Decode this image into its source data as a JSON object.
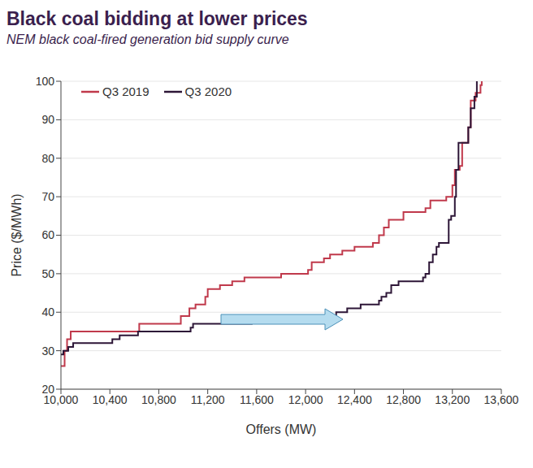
{
  "chart_data": {
    "type": "line",
    "title": "Black coal bidding at lower prices",
    "subtitle": "NEM black coal-fired generation bid supply curve",
    "x_label": "Offers (MW)",
    "y_label": "Price ($/MWh)",
    "line_style": "step",
    "grid": true,
    "legend": "upper left",
    "xlim": [
      10000,
      13600
    ],
    "xticks": [
      {
        "value": 10000,
        "label": "10,000"
      },
      {
        "value": 10400,
        "label": "10,400"
      },
      {
        "value": 10800,
        "label": "10,800"
      },
      {
        "value": 11200,
        "label": "11,200"
      },
      {
        "value": 11600,
        "label": "11,600"
      },
      {
        "value": 12000,
        "label": "12,000"
      },
      {
        "value": 12400,
        "label": "12,400"
      },
      {
        "value": 12800,
        "label": "12,800"
      },
      {
        "value": 13200,
        "label": "13,200"
      },
      {
        "value": 13600,
        "label": "13,600"
      }
    ],
    "ylim": [
      20,
      100
    ],
    "yticks": [
      20,
      30,
      40,
      50,
      60,
      70,
      80,
      90,
      100
    ],
    "series": [
      {
        "name": "Q3 2019",
        "color": "#c0394b",
        "x": [
          10000,
          10030,
          10050,
          10080,
          10640,
          10980,
          11050,
          11100,
          11180,
          11200,
          11300,
          11400,
          11500,
          11800,
          12020,
          12050,
          12150,
          12200,
          12300,
          12400,
          12550,
          12600,
          12640,
          12680,
          12800,
          12980,
          13020,
          13150,
          13200,
          13220,
          13260,
          13280,
          13330,
          13350,
          13390,
          13430,
          13440
        ],
        "values": [
          26,
          30,
          33,
          35,
          37,
          39,
          41,
          42,
          44,
          46,
          47,
          48,
          49,
          50,
          51,
          53,
          54,
          55,
          56,
          57,
          58,
          60,
          62,
          64,
          66,
          67,
          69,
          70,
          73,
          77,
          78,
          84,
          88,
          95,
          97,
          99,
          100
        ]
      },
      {
        "name": "Q3 2020",
        "color": "#2d1637",
        "x": [
          10000,
          10020,
          10060,
          10100,
          10420,
          10480,
          10630,
          11060,
          11080,
          11560,
          12250,
          12340,
          12450,
          12600,
          12620,
          12660,
          12700,
          12760,
          12960,
          12980,
          13010,
          13040,
          13070,
          13090,
          13170,
          13190,
          13220,
          13230,
          13250,
          13330,
          13350,
          13380,
          13400
        ],
        "values": [
          29,
          30,
          31,
          32,
          33,
          34,
          35,
          36,
          37,
          38,
          40,
          41,
          42,
          43,
          44,
          45,
          47,
          48,
          49,
          50,
          53,
          55,
          57,
          58,
          64,
          65,
          70,
          77,
          84,
          88,
          93,
          96,
          100
        ]
      }
    ]
  }
}
